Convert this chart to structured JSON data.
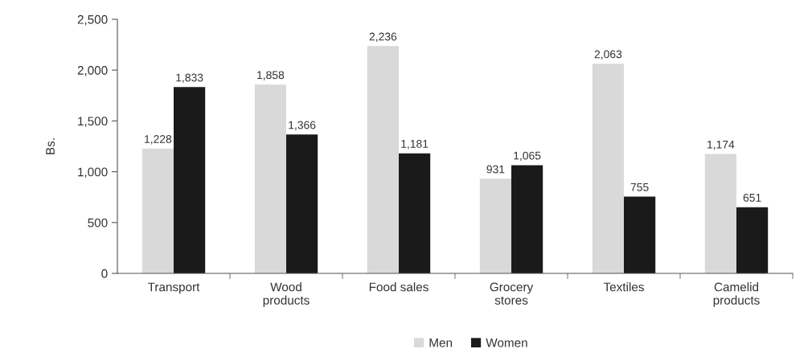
{
  "chart_data": {
    "type": "bar",
    "ylabel": "Bs.",
    "categories": [
      "Transport",
      "Wood\nproducts",
      "Food sales",
      "Grocery\nstores",
      "Textiles",
      "Camelid\nproducts"
    ],
    "series": [
      {
        "name": "Men",
        "color": "#d9d9d9",
        "values": [
          1228,
          1858,
          2236,
          931,
          2063,
          1174
        ],
        "value_labels": [
          "1,228",
          "1,858",
          "2,236",
          "931",
          "2,063",
          "1,174"
        ]
      },
      {
        "name": "Women",
        "color": "#1a1a1a",
        "values": [
          1833,
          1366,
          1181,
          1065,
          755,
          651
        ],
        "value_labels": [
          "1,833",
          "1,366",
          "1,181",
          "1,065",
          "755",
          "651"
        ]
      }
    ],
    "ylim": [
      0,
      2500
    ],
    "yticks": [
      0,
      500,
      {
        "value": 1000,
        "label": "1,000"
      },
      {
        "value": 1500,
        "label": "1,500"
      },
      {
        "value": 2000,
        "label": "2,000"
      },
      {
        "value": 2500,
        "label": "2,500"
      }
    ],
    "grid": false,
    "legend": "bottom"
  }
}
